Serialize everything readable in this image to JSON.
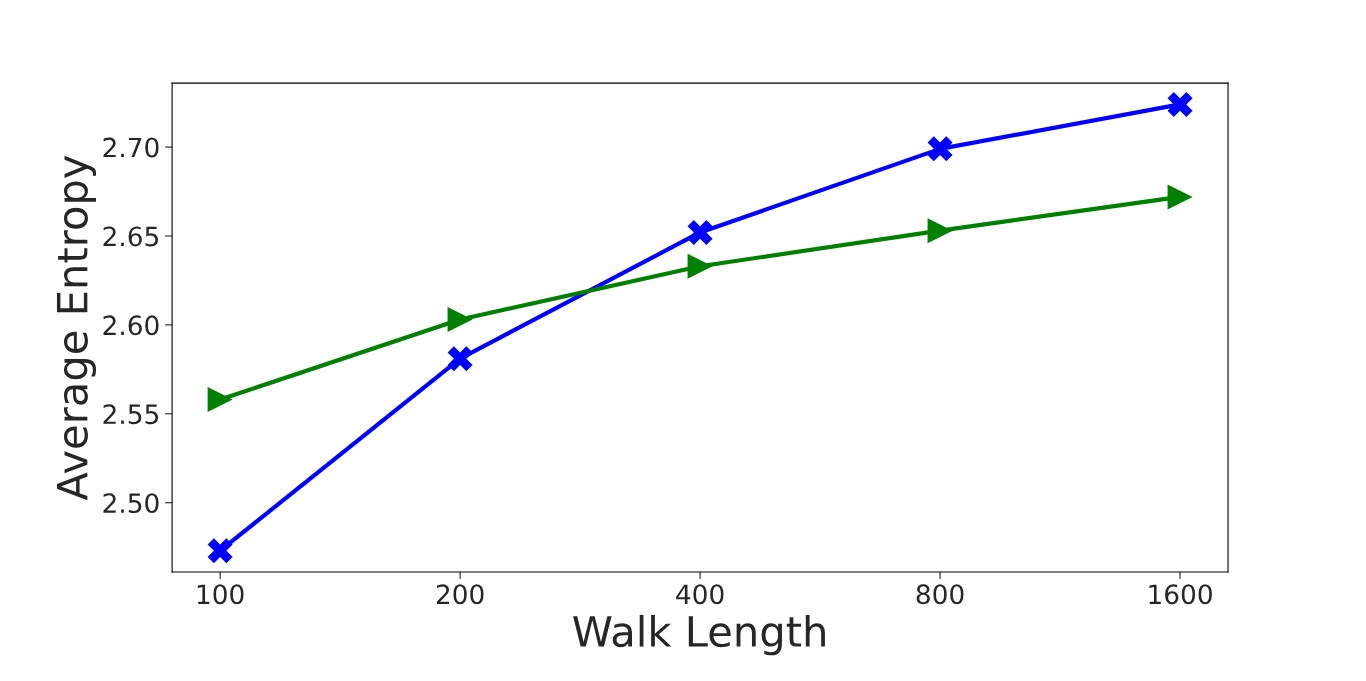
{
  "chart_data": {
    "type": "line",
    "xlabel": "Walk Length",
    "ylabel": "Average Entropy",
    "categories": [
      "100",
      "200",
      "400",
      "800",
      "1600"
    ],
    "series": [
      {
        "color": "#0000ff",
        "marker": "cross",
        "values": [
          2.473,
          2.581,
          2.652,
          2.699,
          2.724
        ]
      },
      {
        "color": "#008000",
        "marker": "triangle",
        "values": [
          2.558,
          2.603,
          2.633,
          2.653,
          2.672
        ]
      }
    ],
    "ylim": [
      2.461,
      2.736
    ],
    "yticks": [
      {
        "value": 2.5,
        "label": "2.50"
      },
      {
        "value": 2.55,
        "label": "2.55"
      },
      {
        "value": 2.6,
        "label": "2.60"
      },
      {
        "value": 2.65,
        "label": "2.65"
      },
      {
        "value": 2.7,
        "label": "2.70"
      }
    ],
    "grid": false,
    "line_style": "solid"
  }
}
